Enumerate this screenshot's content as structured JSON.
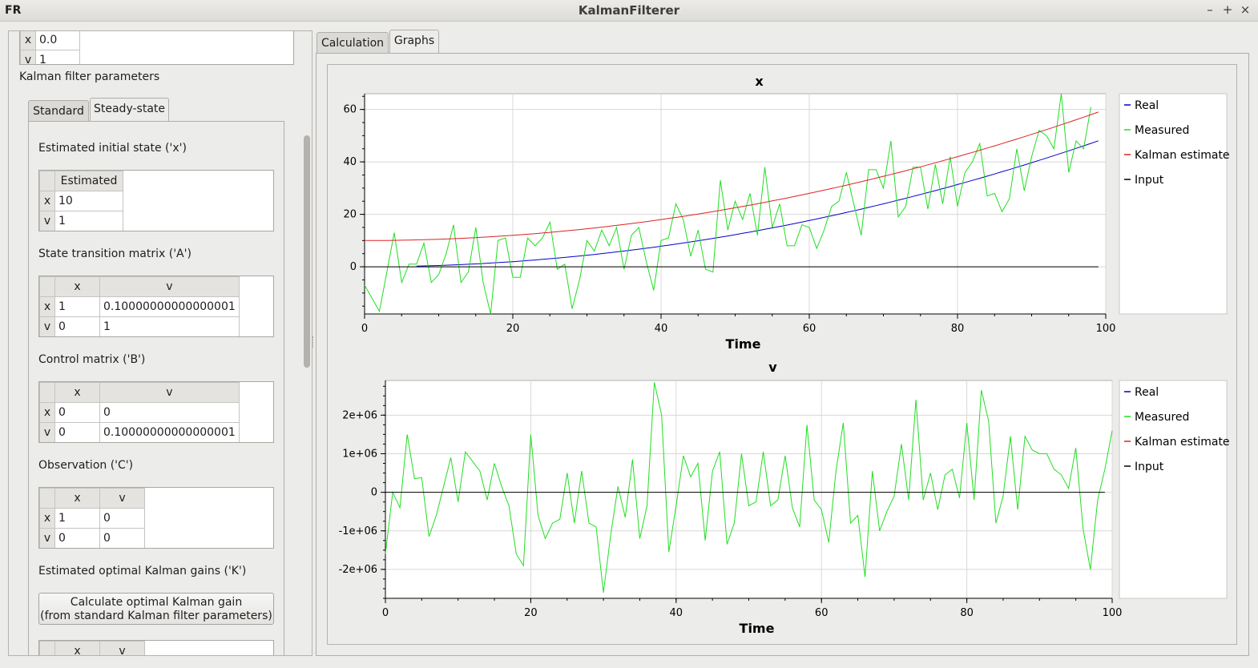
{
  "window": {
    "title": "KalmanFilterer",
    "icon_label": "FR"
  },
  "left": {
    "top_table": {
      "rows": [
        {
          "h": "x",
          "v": "0.0"
        },
        {
          "h": "v",
          "v": "1"
        }
      ]
    },
    "section_label": "Kalman filter parameters",
    "tabs": [
      "Standard",
      "Steady-state"
    ],
    "initial_state": {
      "label": "Estimated initial state ('x')",
      "col": "Estimated",
      "rows": [
        {
          "h": "x",
          "v": "10"
        },
        {
          "h": "v",
          "v": "1"
        }
      ]
    },
    "A": {
      "label": "State transition matrix ('A')",
      "cols": [
        "x",
        "v"
      ],
      "rows": [
        {
          "h": "x",
          "c": [
            "1",
            "0.10000000000000001"
          ]
        },
        {
          "h": "v",
          "c": [
            "0",
            "1"
          ]
        }
      ]
    },
    "B": {
      "label": "Control matrix ('B')",
      "cols": [
        "x",
        "v"
      ],
      "rows": [
        {
          "h": "x",
          "c": [
            "0",
            "0"
          ]
        },
        {
          "h": "v",
          "c": [
            "0",
            "0.10000000000000001"
          ]
        }
      ]
    },
    "C": {
      "label": "Observation ('C')",
      "cols": [
        "x",
        "v"
      ],
      "rows": [
        {
          "h": "x",
          "c": [
            "1",
            "0"
          ]
        },
        {
          "h": "v",
          "c": [
            "0",
            "0"
          ]
        }
      ]
    },
    "K": {
      "label": "Estimated optimal Kalman gains ('K')",
      "button": "Calculate optimal Kalman gain\n(from standard Kalman filter parameters)",
      "cols": [
        "x",
        "v"
      ]
    }
  },
  "right": {
    "tabs": [
      "Calculation",
      "Graphs"
    ]
  },
  "chart_data": [
    {
      "type": "line",
      "title": "x",
      "xlabel": "Time",
      "ylabel": "",
      "xlim": [
        0,
        100
      ],
      "ylim": [
        -18,
        66
      ],
      "xticks": [
        0,
        20,
        40,
        60,
        80,
        100
      ],
      "yticks": [
        0,
        20,
        40,
        60
      ],
      "ytick_labels": [
        "0",
        "20",
        "40",
        "60"
      ],
      "grid": true,
      "legend": "right",
      "series": [
        {
          "name": "Real",
          "color": "#0000cc",
          "fn": "real_x"
        },
        {
          "name": "Measured",
          "color": "#22dd22",
          "values": [
            -7,
            -12,
            -17,
            -2,
            13,
            -6,
            1,
            1,
            9,
            -6,
            -3,
            5,
            16,
            -6,
            -2,
            15,
            -6,
            -18,
            10,
            11,
            -4,
            -4,
            11,
            8,
            11,
            17,
            -1,
            1,
            -16,
            -5,
            10,
            6,
            14,
            8,
            15,
            -1,
            12,
            15,
            2,
            -9,
            10,
            11,
            24,
            18,
            4,
            14,
            -1,
            -2,
            33,
            14,
            25,
            18,
            28,
            12,
            38,
            15,
            24,
            8,
            8,
            16,
            15,
            7,
            14,
            23,
            25,
            36,
            24,
            12,
            37,
            37,
            30,
            48,
            19,
            23,
            38,
            38,
            22,
            39,
            24,
            42,
            23,
            36,
            40,
            47,
            27,
            28,
            21,
            26,
            45,
            29,
            42,
            52,
            50,
            45,
            66,
            36,
            48,
            45,
            61
          ],
          "x_start": 0,
          "x_step": 1
        },
        {
          "name": "Kalman estimate",
          "color": "#dd2222",
          "fn": "kalman_x"
        },
        {
          "name": "Input",
          "color": "#000000",
          "values": [
            0,
            0
          ],
          "x": [
            0,
            99
          ]
        }
      ]
    },
    {
      "type": "line",
      "title": "v",
      "xlabel": "Time",
      "ylabel": "",
      "xlim": [
        0,
        100
      ],
      "ylim": [
        -2750000,
        2900000
      ],
      "xticks": [
        0,
        20,
        40,
        60,
        80,
        100
      ],
      "yticks": [
        -2000000,
        -1000000,
        0,
        1000000,
        2000000
      ],
      "ytick_labels": [
        "-2e+06",
        "-1e+06",
        "0",
        "1e+06",
        "2e+06"
      ],
      "grid": true,
      "legend": "right",
      "series": [
        {
          "name": "Real",
          "color": "#0000cc",
          "values": []
        },
        {
          "name": "Measured",
          "color": "#22dd22",
          "values": [
            -1600000,
            0,
            -400000,
            1500000,
            350000,
            380000,
            -1150000,
            -600000,
            150000,
            900000,
            -250000,
            1050000,
            800000,
            550000,
            -200000,
            750000,
            150000,
            -350000,
            -1600000,
            -1900000,
            1500000,
            -600000,
            -1200000,
            -800000,
            -700000,
            500000,
            -800000,
            550000,
            -800000,
            -900000,
            -2600000,
            -1100000,
            150000,
            -650000,
            850000,
            -1200000,
            -350000,
            2850000,
            2000000,
            -1550000,
            -350000,
            950000,
            400000,
            750000,
            -1250000,
            550000,
            1050000,
            -1350000,
            -800000,
            1000000,
            -350000,
            -250000,
            1050000,
            -350000,
            -200000,
            950000,
            -400000,
            -900000,
            1750000,
            -200000,
            -450000,
            -1300000,
            550000,
            1800000,
            -800000,
            -600000,
            -2200000,
            550000,
            -1000000,
            -500000,
            -100000,
            1250000,
            -200000,
            2400000,
            -200000,
            500000,
            -450000,
            450000,
            600000,
            -150000,
            1800000,
            -200000,
            2650000,
            1850000,
            -800000,
            -100000,
            1450000,
            -450000,
            1450000,
            1100000,
            1000000,
            1000000,
            600000,
            450000,
            100000,
            1150000,
            -950000,
            -2000000,
            -200000,
            600000,
            1600000
          ],
          "x_start": 0,
          "x_step": 1
        },
        {
          "name": "Kalman estimate",
          "color": "#dd2222",
          "values": []
        },
        {
          "name": "Input",
          "color": "#000000",
          "values": [
            0,
            0
          ],
          "x": [
            0,
            99
          ]
        }
      ]
    }
  ]
}
